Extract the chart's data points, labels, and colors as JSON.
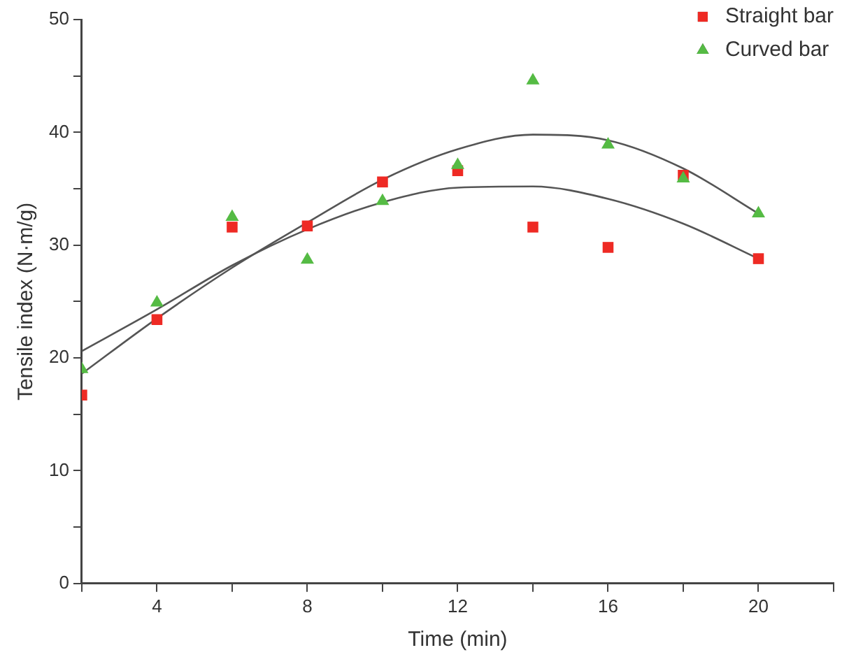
{
  "chart_data": {
    "type": "scatter",
    "xlabel": "Time (min)",
    "ylabel": "Tensile index (N·m/g)",
    "x": [
      2,
      4,
      6,
      8,
      10,
      12,
      14,
      16,
      18,
      20
    ],
    "series": [
      {
        "name": "Straight bar",
        "color": "#ee2a24",
        "marker": "square",
        "values": [
          16.7,
          23.4,
          31.6,
          31.7,
          35.6,
          36.6,
          31.6,
          29.8,
          36.2,
          28.8
        ]
      },
      {
        "name": "Curved bar",
        "color": "#55bb44",
        "marker": "triangle",
        "values": [
          19.0,
          24.9,
          32.5,
          28.7,
          33.9,
          37.1,
          44.6,
          38.9,
          35.9,
          32.8
        ]
      },
      {
        "type": "line",
        "color": "#555555",
        "marker": "none",
        "x": [
          2,
          4,
          6,
          8,
          10,
          12,
          14,
          16,
          18,
          20
        ],
        "values": [
          20.6,
          24.3,
          28.2,
          31.4,
          33.8,
          35.1,
          35.2,
          34.1,
          31.9,
          28.8
        ]
      },
      {
        "type": "line",
        "color": "#555555",
        "marker": "none",
        "x": [
          2,
          4,
          6,
          8,
          10,
          12,
          14,
          16,
          18,
          20
        ],
        "values": [
          18.6,
          23.5,
          28.0,
          32.0,
          35.8,
          38.5,
          39.8,
          39.3,
          36.8,
          32.8
        ]
      }
    ],
    "xlim": [
      2,
      22
    ],
    "xticks": [
      {
        "value": 2,
        "label": null
      },
      4,
      {
        "value": 6,
        "label": null
      },
      8,
      {
        "value": 10,
        "label": null
      },
      12,
      {
        "value": 14,
        "label": null
      },
      16,
      {
        "value": 18,
        "label": null
      },
      20,
      {
        "value": 22,
        "label": null
      }
    ],
    "ylim": [
      0,
      50
    ],
    "yticks": [
      0,
      {
        "value": 5,
        "label": null
      },
      10,
      {
        "value": 15,
        "label": null
      },
      20,
      {
        "value": 25,
        "label": null
      },
      30,
      {
        "value": 35,
        "label": null
      },
      40,
      {
        "value": 45,
        "label": null
      },
      50
    ],
    "grid": false,
    "legend": "top right"
  }
}
